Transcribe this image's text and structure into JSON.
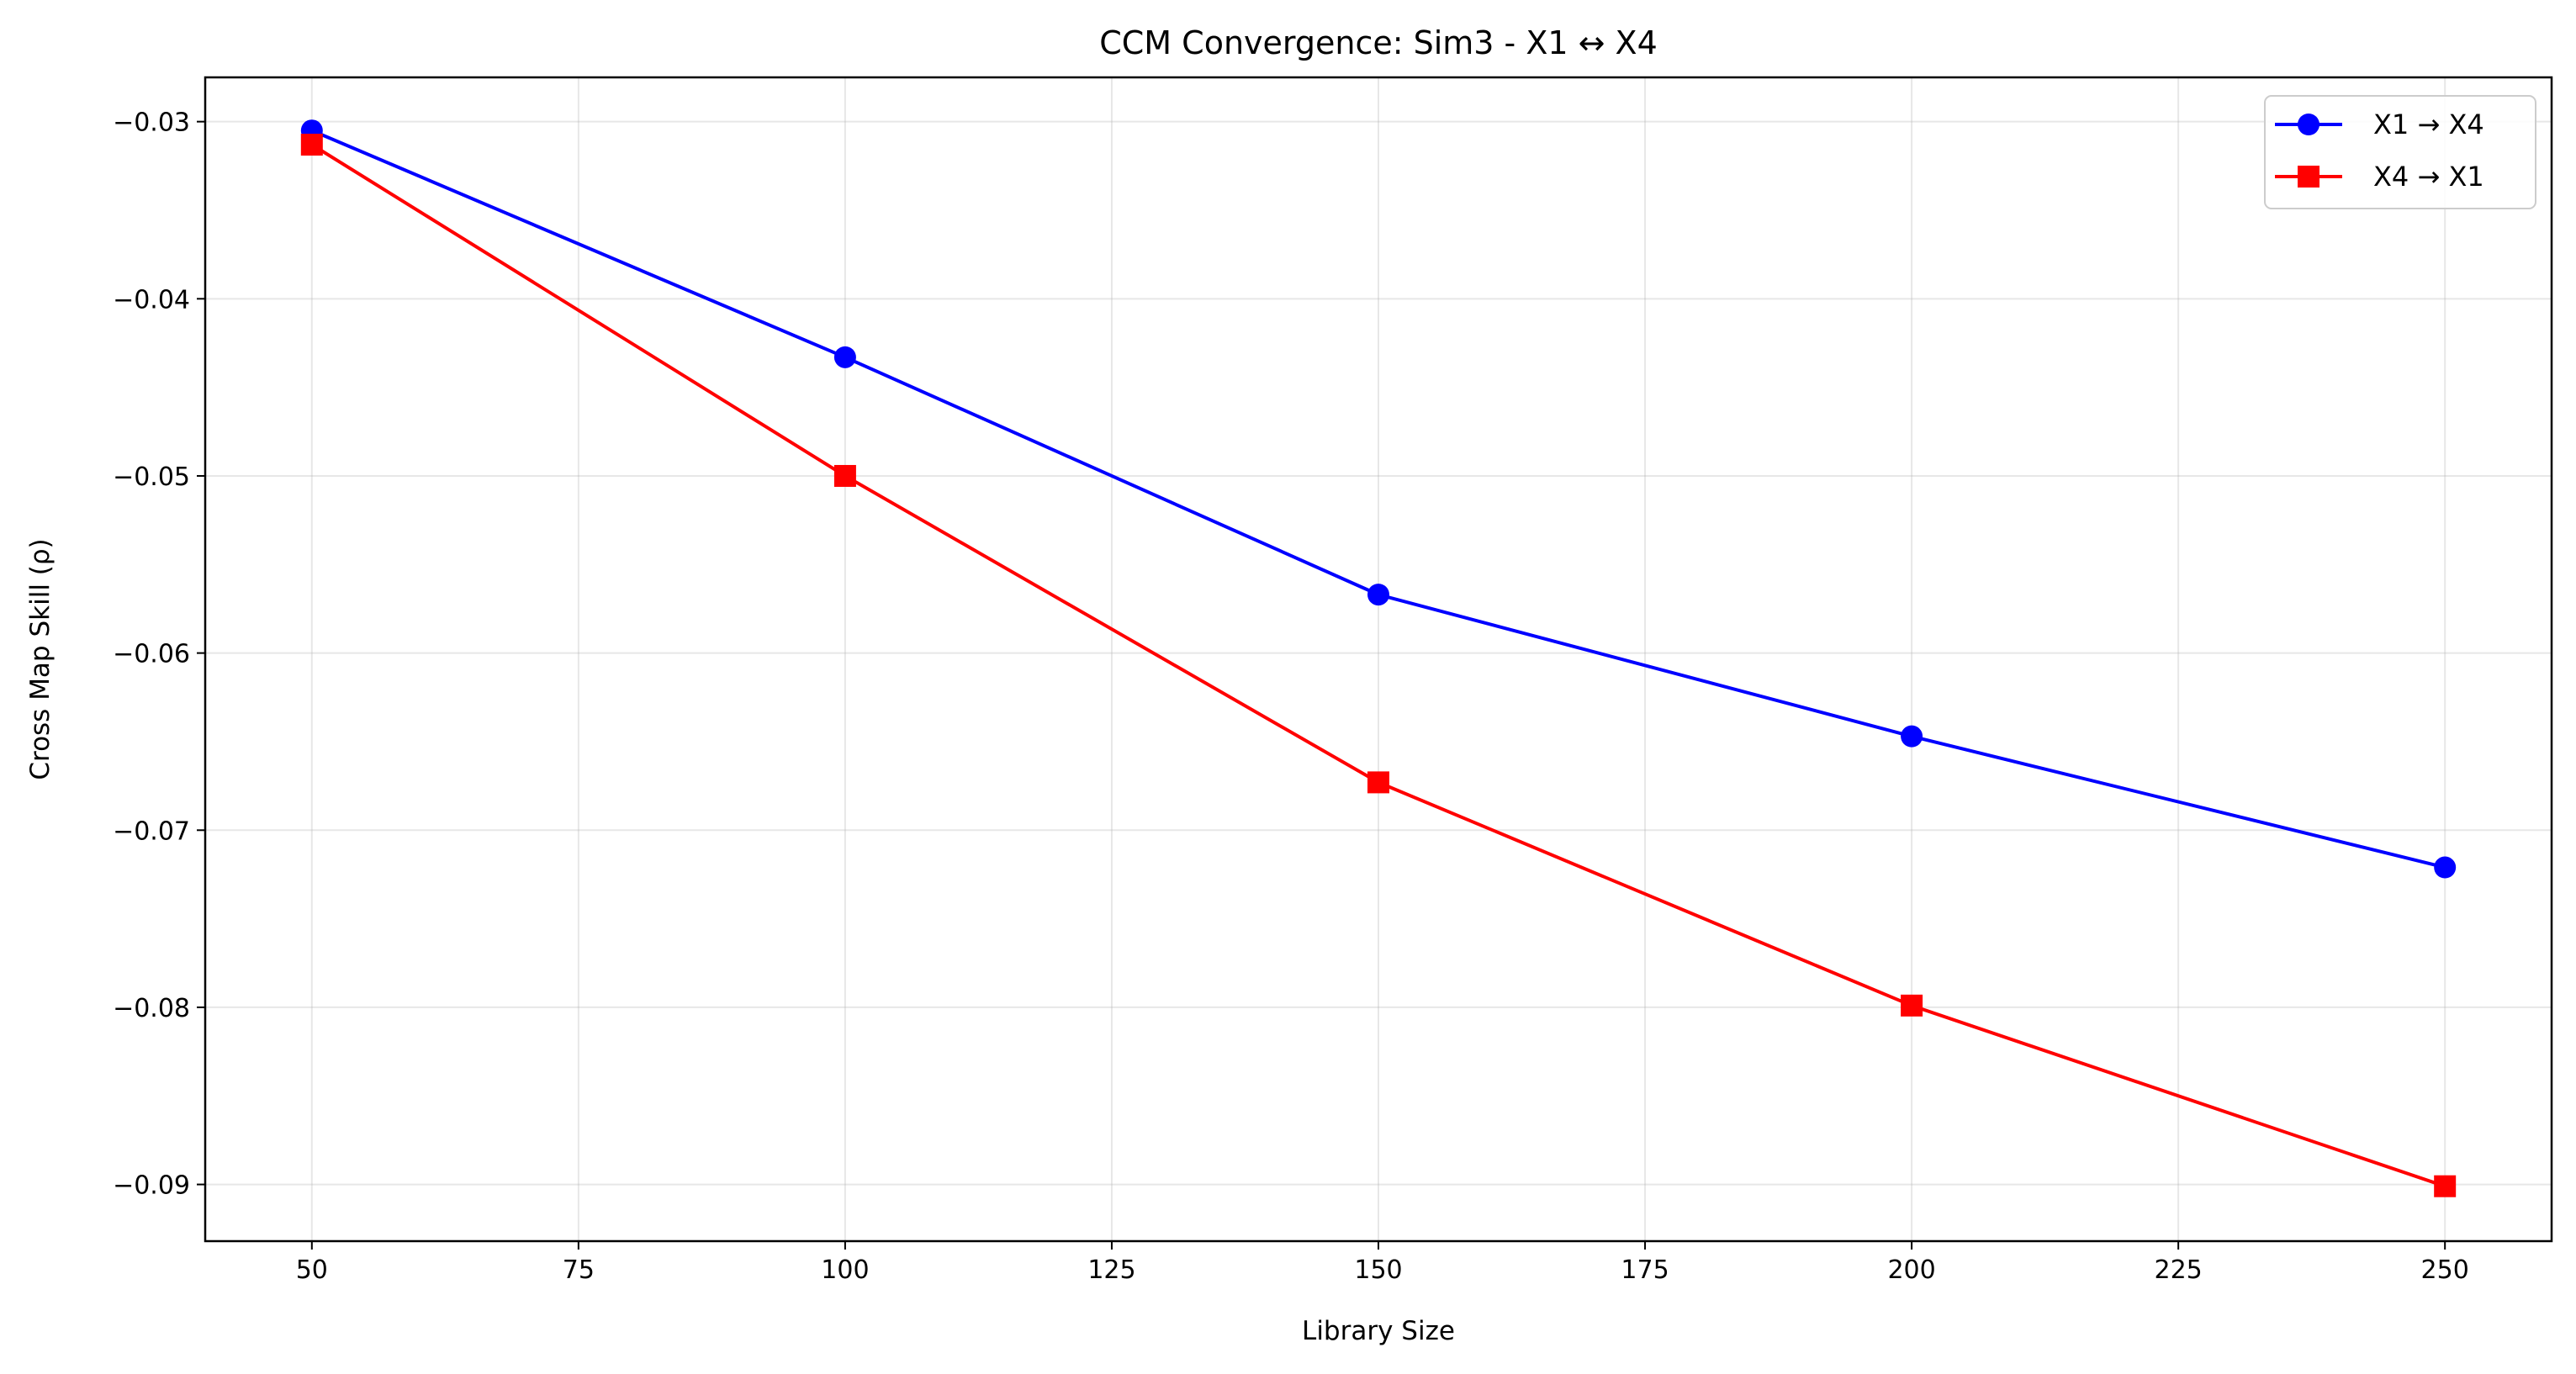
{
  "chart_data": {
    "type": "line",
    "title": "CCM Convergence: Sim3 - X1 ↔ X4",
    "xlabel": "Library Size",
    "ylabel": "Cross Map Skill (ρ)",
    "x": [
      50,
      100,
      150,
      200,
      250
    ],
    "xlim": [
      40,
      260
    ],
    "ylim": [
      -0.0932,
      -0.0275
    ],
    "xticks": [
      50,
      75,
      100,
      125,
      150,
      175,
      200,
      225,
      250
    ],
    "xtick_labels": [
      "50",
      "75",
      "100",
      "125",
      "150",
      "175",
      "200",
      "225",
      "250"
    ],
    "yticks": [
      -0.03,
      -0.04,
      -0.05,
      -0.06,
      -0.07,
      -0.08,
      -0.09
    ],
    "ytick_labels": [
      "−0.03",
      "−0.04",
      "−0.05",
      "−0.06",
      "−0.07",
      "−0.08",
      "−0.09"
    ],
    "grid": true,
    "legend_position": "top-right",
    "series": [
      {
        "name": "X1 → X4",
        "color": "#0000ff",
        "marker": "circle",
        "values": [
          -0.0305,
          -0.0433,
          -0.0567,
          -0.0647,
          -0.0721
        ]
      },
      {
        "name": "X4 → X1",
        "color": "#ff0000",
        "marker": "square",
        "values": [
          -0.0313,
          -0.05,
          -0.0673,
          -0.0799,
          -0.0901
        ]
      }
    ]
  }
}
